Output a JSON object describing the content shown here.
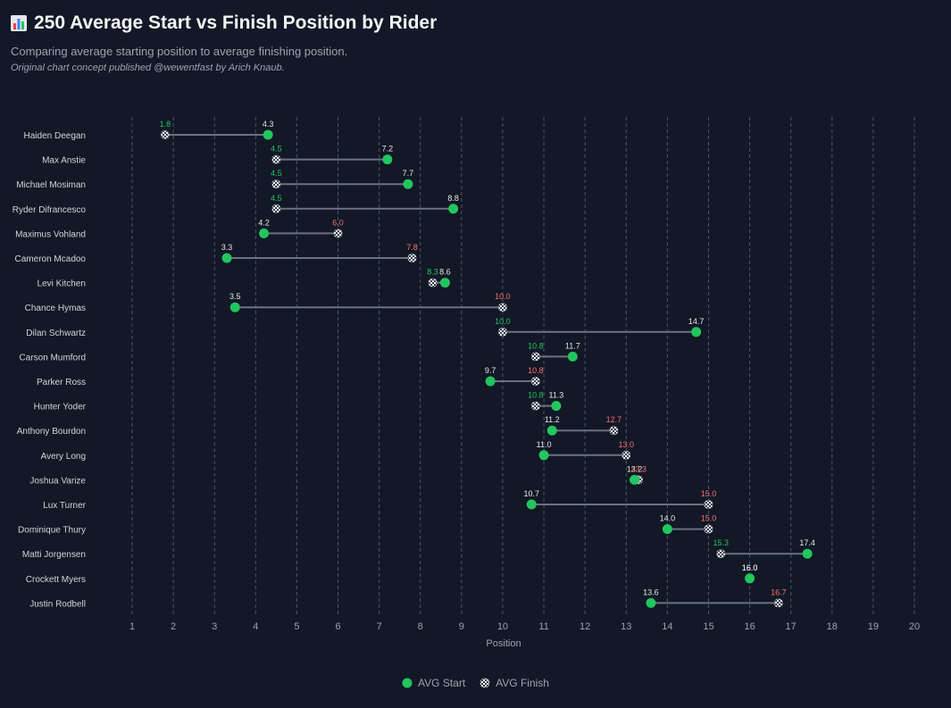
{
  "header": {
    "title": "250 Average Start vs Finish Position by Rider",
    "subtitle": "Comparing average starting position to average finishing position.",
    "credit": "Original chart concept published @wewentfast by Arich Knaub."
  },
  "colors": {
    "background": "#121826",
    "start": "#22c55e",
    "better": "#22c55e",
    "worse": "#f87171",
    "neutral": "#e5e7eb",
    "connector": "#6b7280",
    "grid": "#4b5563"
  },
  "legend": {
    "start_label": "AVG Start",
    "finish_label": "AVG Finish"
  },
  "chart_data": {
    "type": "dumbbell",
    "title": "250 Average Start vs Finish Position by Rider",
    "xlabel": "Position",
    "xlim": [
      1,
      20
    ],
    "xticks": [
      1,
      2,
      3,
      4,
      5,
      6,
      7,
      8,
      9,
      10,
      11,
      12,
      13,
      14,
      15,
      16,
      17,
      18,
      19,
      20
    ],
    "riders": [
      {
        "name": "Haiden Deegan",
        "start": 4.3,
        "finish": 1.8,
        "start_label": "4.3",
        "finish_label": "1.8"
      },
      {
        "name": "Max Anstie",
        "start": 7.2,
        "finish": 4.5,
        "start_label": "7.2",
        "finish_label": "4.5"
      },
      {
        "name": "Michael Mosiman",
        "start": 7.7,
        "finish": 4.5,
        "start_label": "7.7",
        "finish_label": "4.5"
      },
      {
        "name": "Ryder Difrancesco",
        "start": 8.8,
        "finish": 4.5,
        "start_label": "8.8",
        "finish_label": "4.5"
      },
      {
        "name": "Maximus Vohland",
        "start": 4.2,
        "finish": 6.0,
        "start_label": "4.2",
        "finish_label": "6.0"
      },
      {
        "name": "Cameron Mcadoo",
        "start": 3.3,
        "finish": 7.8,
        "start_label": "3.3",
        "finish_label": "7.8"
      },
      {
        "name": "Levi Kitchen",
        "start": 8.6,
        "finish": 8.3,
        "start_label": "8.6",
        "finish_label": "8.3"
      },
      {
        "name": "Chance Hymas",
        "start": 3.5,
        "finish": 10.0,
        "start_label": "3.5",
        "finish_label": "10.0"
      },
      {
        "name": "Dilan Schwartz",
        "start": 14.7,
        "finish": 10.0,
        "start_label": "14.7",
        "finish_label": "10.0"
      },
      {
        "name": "Carson Mumford",
        "start": 11.7,
        "finish": 10.8,
        "start_label": "11.7",
        "finish_label": "10.8"
      },
      {
        "name": "Parker Ross",
        "start": 9.7,
        "finish": 10.8,
        "start_label": "9.7",
        "finish_label": "10.8"
      },
      {
        "name": "Hunter Yoder",
        "start": 11.3,
        "finish": 10.8,
        "start_label": "11.3",
        "finish_label": "10.8"
      },
      {
        "name": "Anthony Bourdon",
        "start": 11.2,
        "finish": 12.7,
        "start_label": "11.2",
        "finish_label": "12.7"
      },
      {
        "name": "Avery Long",
        "start": 11.0,
        "finish": 13.0,
        "start_label": "11.0",
        "finish_label": "13.0"
      },
      {
        "name": "Joshua Varize",
        "start": 13.2,
        "finish": 13.3,
        "start_label": "13.2",
        "finish_label": "13.3"
      },
      {
        "name": "Lux Turner",
        "start": 10.7,
        "finish": 15.0,
        "start_label": "10.7",
        "finish_label": "15.0"
      },
      {
        "name": "Dominique Thury",
        "start": 14.0,
        "finish": 15.0,
        "start_label": "14.0",
        "finish_label": "15.0"
      },
      {
        "name": "Matti Jorgensen",
        "start": 17.4,
        "finish": 15.3,
        "start_label": "17.4",
        "finish_label": "15.3"
      },
      {
        "name": "Crockett Myers",
        "start": 16.0,
        "finish": 16.0,
        "start_label": "16.0",
        "finish_label": "16.0"
      },
      {
        "name": "Justin Rodbell",
        "start": 13.6,
        "finish": 16.7,
        "start_label": "13.6",
        "finish_label": "16.7"
      }
    ]
  }
}
